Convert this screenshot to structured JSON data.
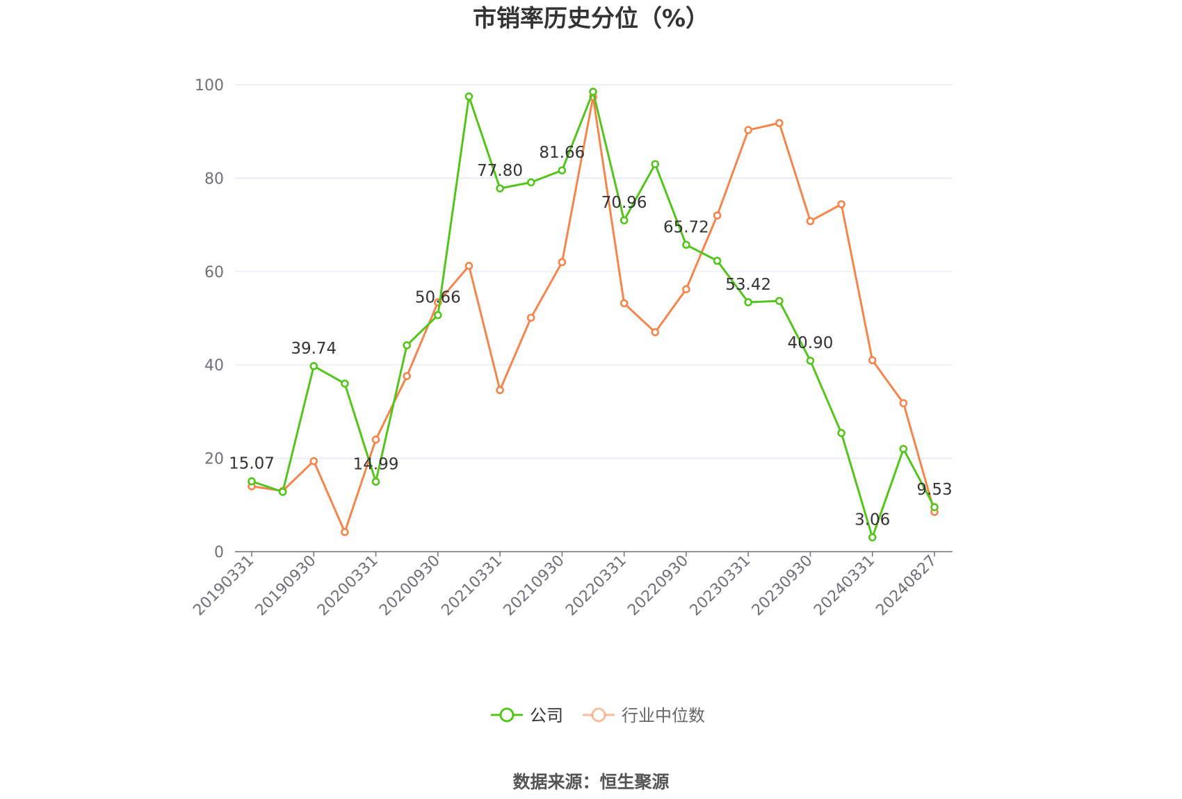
{
  "chart_data": {
    "type": "line",
    "title": "市销率历史分位（%）",
    "source": "数据来源：恒生聚源",
    "ylim": [
      0,
      100
    ],
    "y_ticks": [
      0,
      20,
      40,
      60,
      80,
      100
    ],
    "grid": true,
    "legend_position": "bottom-center",
    "x_tick_labels": [
      "20190331",
      "20190930",
      "20200331",
      "20200930",
      "20210331",
      "20210930",
      "20220331",
      "20220930",
      "20230331",
      "20230930",
      "20240331",
      "20240827"
    ],
    "x": [
      "20190331",
      "20190630",
      "20190930",
      "20191231",
      "20200331",
      "20200630",
      "20200930",
      "20201231",
      "20210331",
      "20210630",
      "20210930",
      "20211231",
      "20220331",
      "20220630",
      "20220930",
      "20221231",
      "20230331",
      "20230630",
      "20230930",
      "20231231",
      "20240331",
      "20240630",
      "20240827"
    ],
    "series": [
      {
        "name": "公司",
        "color": "#52c41a",
        "values": [
          15.07,
          12.8,
          39.74,
          36.0,
          14.99,
          44.2,
          50.66,
          97.5,
          77.8,
          79.1,
          81.66,
          98.5,
          70.96,
          83.0,
          65.72,
          62.3,
          53.42,
          53.7,
          40.9,
          25.4,
          3.06,
          22.0,
          9.53
        ],
        "labels": {
          "0": "15.07",
          "2": "39.74",
          "4": "14.99",
          "6": "50.66",
          "8": "77.80",
          "10": "81.66",
          "12": "70.96",
          "14": "65.72",
          "16": "53.42",
          "18": "40.90",
          "20": "3.06",
          "22": "9.53"
        }
      },
      {
        "name": "行业中位数",
        "color": "#f5844b",
        "values": [
          14.0,
          13.0,
          19.4,
          4.2,
          24.0,
          37.6,
          53.4,
          61.2,
          34.6,
          50.1,
          62.0,
          97.4,
          53.2,
          47.0,
          56.2,
          72.0,
          90.3,
          91.8,
          70.8,
          74.4,
          41.0,
          31.8,
          8.5
        ]
      }
    ]
  }
}
